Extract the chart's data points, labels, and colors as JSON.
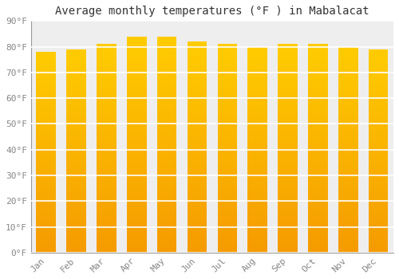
{
  "title": "Average monthly temperatures (°F ) in Mabalacat",
  "months": [
    "Jan",
    "Feb",
    "Mar",
    "Apr",
    "May",
    "Jun",
    "Jul",
    "Aug",
    "Sep",
    "Oct",
    "Nov",
    "Dec"
  ],
  "values": [
    78,
    79,
    81,
    84,
    84,
    82,
    81,
    80,
    81,
    81,
    80,
    79
  ],
  "bar_color_top": "#FFCC00",
  "bar_color_bottom": "#F59B00",
  "background_color": "#FFFFFF",
  "plot_bg_color": "#EEEEEE",
  "grid_color": "#FFFFFF",
  "ytick_labels": [
    "0°F",
    "10°F",
    "20°F",
    "30°F",
    "40°F",
    "50°F",
    "60°F",
    "70°F",
    "80°F",
    "90°F"
  ],
  "ytick_values": [
    0,
    10,
    20,
    30,
    40,
    50,
    60,
    70,
    80,
    90
  ],
  "ylim": [
    0,
    90
  ],
  "title_fontsize": 10,
  "tick_fontsize": 8,
  "font_family": "monospace",
  "bar_width": 0.65,
  "n_gradient_steps": 100
}
